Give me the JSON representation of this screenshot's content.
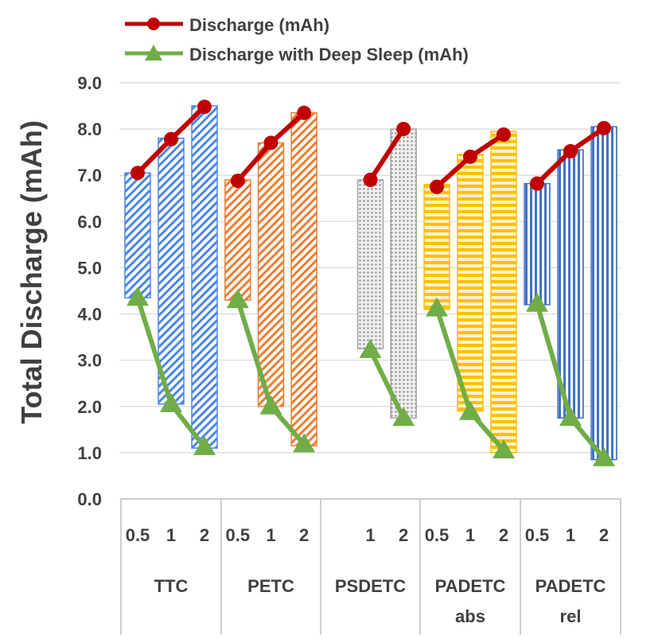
{
  "chart_data": {
    "type": "bar",
    "ylabel": "Total Discharge (mAh)",
    "ylim": [
      0,
      9
    ],
    "yticks": [
      "0.0",
      "1.0",
      "2.0",
      "3.0",
      "4.0",
      "5.0",
      "6.0",
      "7.0",
      "8.0",
      "9.0"
    ],
    "grid": true,
    "legend_position": "top",
    "legend": [
      {
        "name": "Discharge (mAh)",
        "marker": "circle",
        "color": "#c00000"
      },
      {
        "name": "Discharge with Deep Sleep (mAh)",
        "marker": "triangle",
        "color": "#70ad47"
      }
    ],
    "groups": [
      {
        "name": "TTC",
        "line2": "",
        "color": "#4a86e8",
        "pattern": "diag",
        "bars": [
          {
            "label": "0.5",
            "low": 4.35,
            "high": 7.05
          },
          {
            "label": "1",
            "low": 2.05,
            "high": 7.8
          },
          {
            "label": "2",
            "low": 1.1,
            "high": 8.5
          }
        ],
        "discharge": [
          7.05,
          7.78,
          8.48
        ],
        "deep_sleep": [
          4.35,
          2.05,
          1.12
        ]
      },
      {
        "name": "PETC",
        "line2": "",
        "color": "#ed7d31",
        "pattern": "diag",
        "bars": [
          {
            "label": "0.5",
            "low": 4.3,
            "high": 6.9
          },
          {
            "label": "1",
            "low": 2.0,
            "high": 7.7
          },
          {
            "label": "2",
            "low": 1.15,
            "high": 8.35
          }
        ],
        "discharge": [
          6.88,
          7.7,
          8.35
        ],
        "deep_sleep": [
          4.3,
          2.0,
          1.18
        ]
      },
      {
        "name": "PSDETC",
        "line2": "",
        "color": "#a5a5a5",
        "pattern": "dots",
        "bars": [
          {
            "label": "",
            "low": null,
            "high": null
          },
          {
            "label": "1",
            "low": 3.25,
            "high": 6.9
          },
          {
            "label": "2",
            "low": 1.75,
            "high": 8.0
          }
        ],
        "discharge": [
          null,
          6.9,
          8.0
        ],
        "deep_sleep": [
          null,
          3.22,
          1.75
        ]
      },
      {
        "name": "PADETC",
        "line2": "abs",
        "color": "#ffc000",
        "pattern": "horiz",
        "bars": [
          {
            "label": "0.5",
            "low": 4.1,
            "high": 6.8
          },
          {
            "label": "1",
            "low": 1.9,
            "high": 7.45
          },
          {
            "label": "2",
            "low": 1.0,
            "high": 7.95
          }
        ],
        "discharge": [
          6.75,
          7.4,
          7.88
        ],
        "deep_sleep": [
          4.12,
          1.88,
          1.05
        ]
      },
      {
        "name": "PADETC",
        "line2": "rel",
        "color": "#4472c4",
        "pattern": "vert",
        "bars": [
          {
            "label": "0.5",
            "low": 4.2,
            "high": 6.82
          },
          {
            "label": "1",
            "low": 1.75,
            "high": 7.55
          },
          {
            "label": "2",
            "low": 0.85,
            "high": 8.05
          }
        ],
        "discharge": [
          6.82,
          7.52,
          8.02
        ],
        "deep_sleep": [
          4.22,
          1.75,
          0.88
        ]
      }
    ]
  }
}
